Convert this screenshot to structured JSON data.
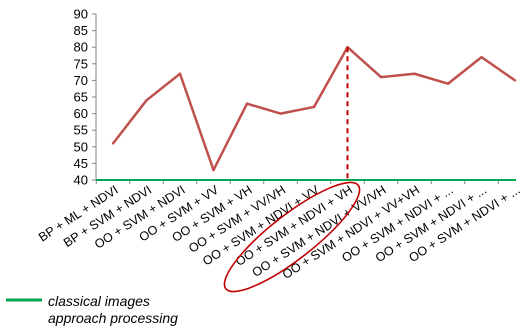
{
  "chart_data": {
    "type": "line",
    "title": "",
    "xlabel": "",
    "ylabel": "",
    "ylim": [
      40,
      90
    ],
    "yticks": [
      40,
      45,
      50,
      55,
      60,
      65,
      70,
      75,
      80,
      85,
      90
    ],
    "grid": false,
    "categories": [
      "BP + ML + NDVI",
      "BP + SVM + NDVI",
      "OO + SVM + NDVI",
      "OO + SVM + VV",
      "OO + SVM + VH",
      "OO + SVM + VV/VH",
      "OO + SVM + NDVI + VV",
      "OO + SVM + NDVI + VH",
      "OO + SVM + NDVI + VV/VH",
      "OO + SVM + NDVI + VV+VH",
      "OO + SVM + NDVI + ...",
      "OO + SVM + NDVI + ...",
      "OO + SVM + NDVI + ..."
    ],
    "series": [
      {
        "values": [
          51,
          64,
          72,
          43,
          63,
          60,
          62,
          80,
          71,
          72,
          69,
          77,
          70
        ],
        "color": "#c0504d"
      }
    ],
    "baseline": {
      "value": 40,
      "color": "#00a651"
    },
    "highlight": {
      "category_index": 7,
      "line_color": "#c00000",
      "ellipse_color": "#c00000"
    },
    "legend": {
      "placement": "bottom-left",
      "line_color": "#00a651",
      "text_line1": "classical  images",
      "text_line2": "approach processing"
    }
  }
}
